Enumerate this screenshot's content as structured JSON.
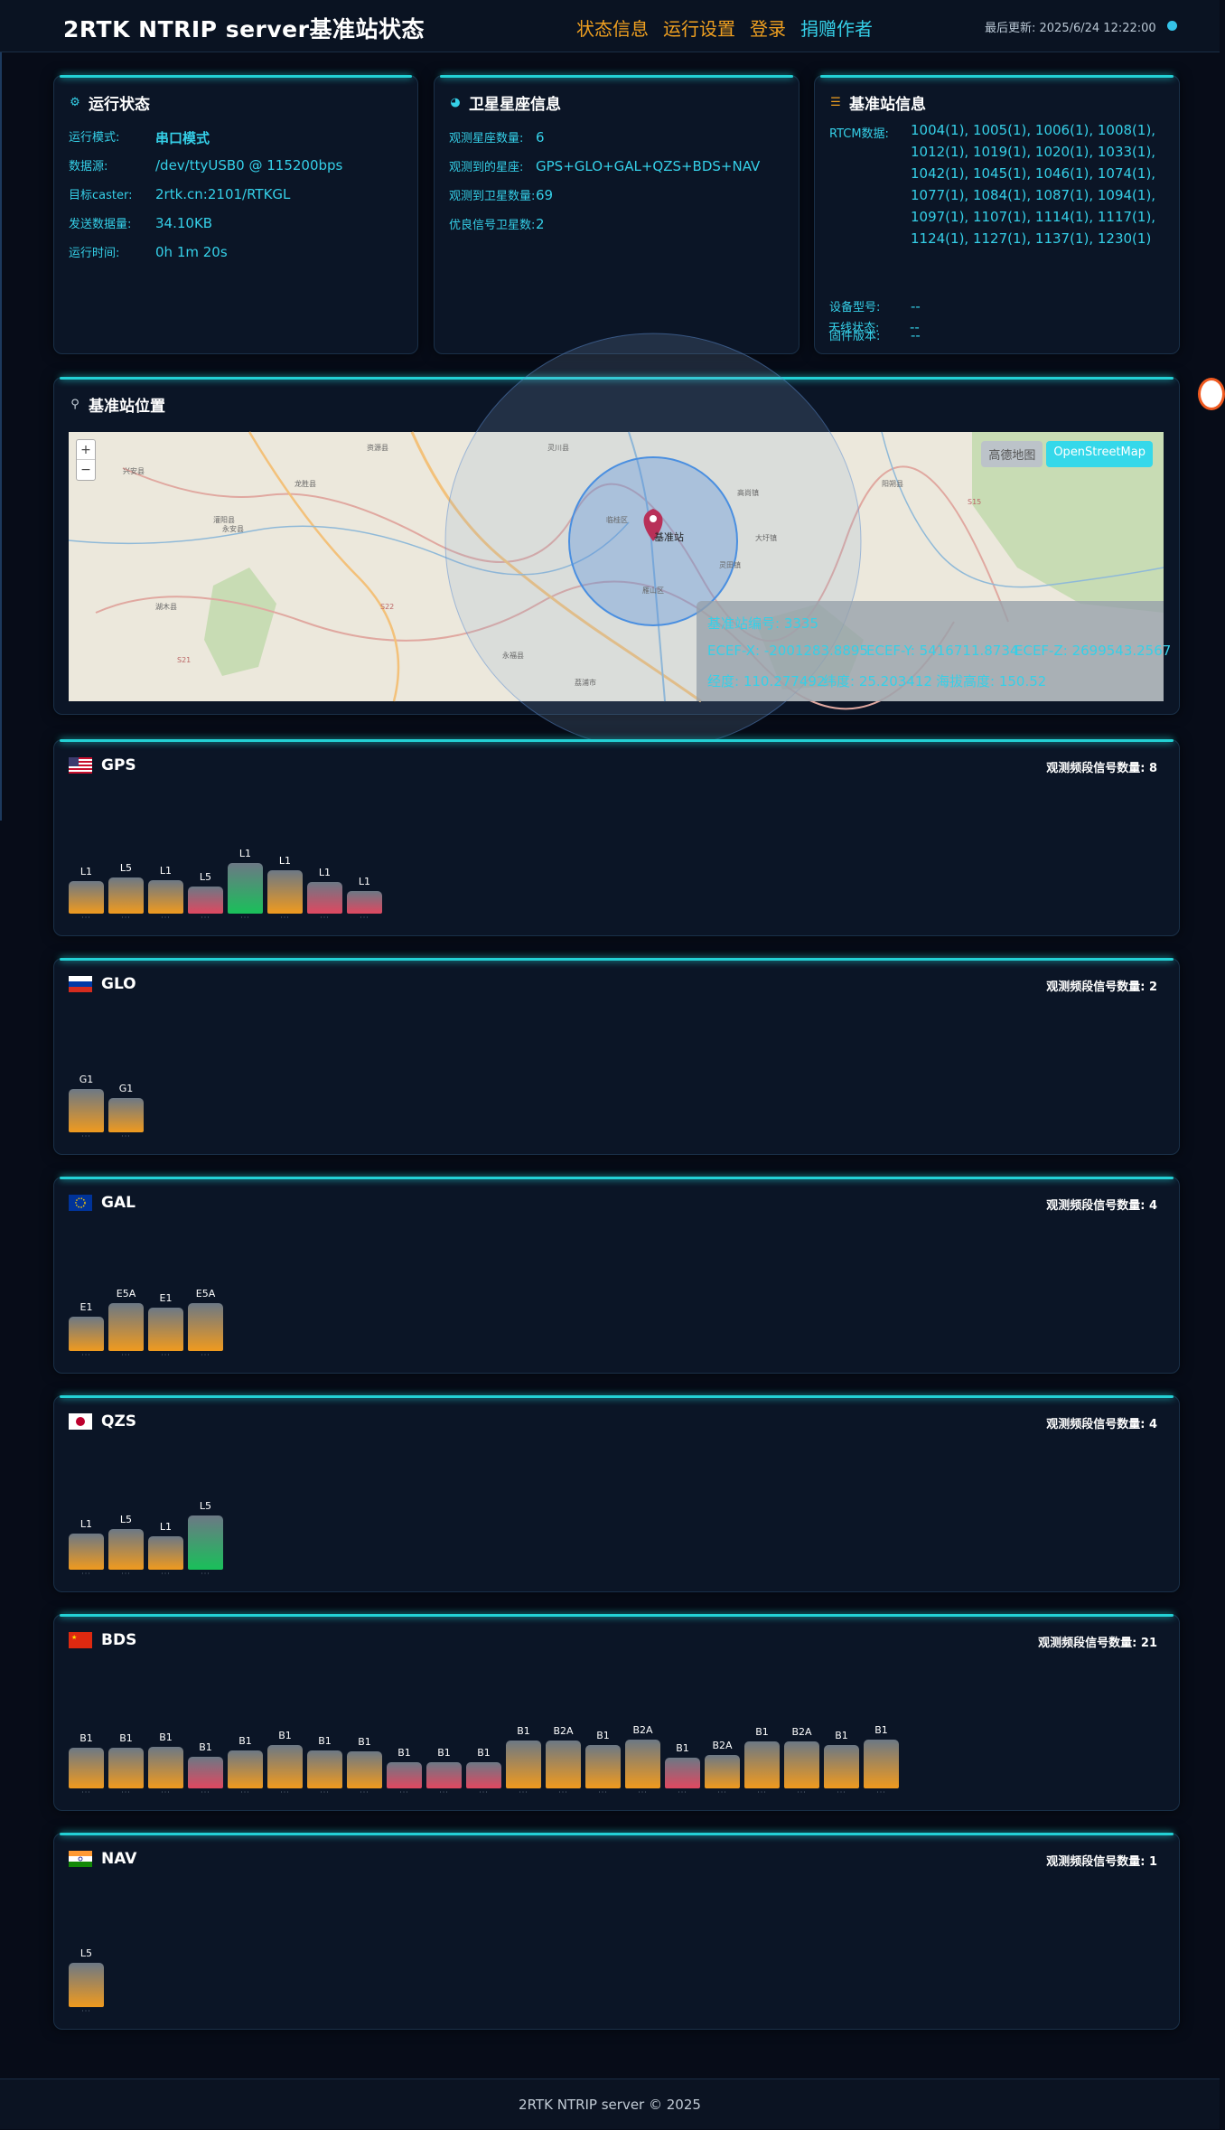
{
  "header": {
    "brand": "2RTK NTRIP server基准站状态",
    "nav": [
      "状态信息",
      "运行设置",
      "登录",
      "捐赠作者"
    ],
    "last_update": "最后更新: 2025/6/24 12:22:00",
    "status_color": "#35c3e8"
  },
  "run_status": {
    "title": "运行状态",
    "icon": "gear-icon",
    "rows": [
      {
        "k": "运行模式:",
        "v": "串口模式"
      },
      {
        "k": "数据源:",
        "v": "/dev/ttyUSB0 @ 115200bps"
      },
      {
        "k": "目标caster:",
        "v": "2rtk.cn:2101/RTKGL"
      },
      {
        "k": "发送数据量:",
        "v": "34.10KB"
      },
      {
        "k": "运行时间:",
        "v": "0h 1m 20s"
      }
    ]
  },
  "constellation": {
    "title": "卫星星座信息",
    "icon": "globe-icon",
    "rows": [
      {
        "k": "观测星座数量:",
        "v": "6"
      },
      {
        "k": "观测到的星座:",
        "v": "GPS+GLO+GAL+QZS+BDS+NAV"
      },
      {
        "k": "观测到卫星数量:",
        "v": "69"
      },
      {
        "k": "优良信号卫星数:",
        "v": "2"
      }
    ]
  },
  "station": {
    "title": "基准站信息",
    "icon": "list-icon",
    "rtcm_label": "RTCM数据:",
    "rtcm_value": "1004(1), 1005(1), 1006(1), 1008(1), 1012(1), 1019(1), 1020(1), 1033(1), 1042(1), 1045(1), 1046(1), 1074(1), 1077(1), 1084(1), 1087(1), 1094(1), 1097(1), 1107(1), 1114(1), 1117(1), 1124(1), 1127(1), 1137(1), 1230(1)",
    "rows": [
      {
        "k": "设备型号:",
        "v": "--"
      },
      {
        "k": "固件版本:",
        "v": "--"
      },
      {
        "k": "天线状态:",
        "v": "--"
      }
    ]
  },
  "position": {
    "title": "基准站位置",
    "icon": "pin-icon",
    "map_buttons": [
      "高德地图",
      "OpenStreetMap"
    ],
    "marker_label": "基准站",
    "station_id": "基准站编号: 3335",
    "ecef_x": "ECEF-X: -2001283.8895",
    "ecef_y": "ECEF-Y: 5416711.8734",
    "ecef_z": "ECEF-Z: 2699543.2567",
    "lon": "经度: 110.277492",
    "lat": "纬度: 25.203412",
    "alt": "海拔高度: 150.52",
    "map_labels": [
      "兴安县",
      "灵川县",
      "临桂区",
      "阳朔县",
      "永福县",
      "恭城县",
      "灌阳县",
      "龙胜县",
      "资源县",
      "荔浦市",
      "湖木县",
      "永安县",
      "高尚镇",
      "大圩镇",
      "灵田镇",
      "雁山区",
      "S22",
      "S21",
      "S15"
    ]
  },
  "count_label": "观测频段信号数量:",
  "gnss": [
    {
      "name": "GPS",
      "flag": "us-flag-icon",
      "count": "8",
      "bars": [
        {
          "l": "L1",
          "h": 36,
          "c": "orange"
        },
        {
          "l": "L5",
          "h": 40,
          "c": "orange"
        },
        {
          "l": "L1",
          "h": 37,
          "c": "orange"
        },
        {
          "l": "L5",
          "h": 30,
          "c": "red"
        },
        {
          "l": "L1",
          "h": 56,
          "c": "green"
        },
        {
          "l": "L1",
          "h": 48,
          "c": "orange"
        },
        {
          "l": "L1",
          "h": 35,
          "c": "red"
        },
        {
          "l": "L1",
          "h": 25,
          "c": "red"
        }
      ]
    },
    {
      "name": "GLO",
      "flag": "ru-flag-icon",
      "count": "2",
      "bars": [
        {
          "l": "G1",
          "h": 48,
          "c": "orange"
        },
        {
          "l": "G1",
          "h": 38,
          "c": "orange"
        }
      ]
    },
    {
      "name": "GAL",
      "flag": "eu-flag-icon",
      "count": "4",
      "bars": [
        {
          "l": "E1",
          "h": 38,
          "c": "orange"
        },
        {
          "l": "E5A",
          "h": 53,
          "c": "orange"
        },
        {
          "l": "E1",
          "h": 48,
          "c": "orange"
        },
        {
          "l": "E5A",
          "h": 53,
          "c": "orange"
        }
      ]
    },
    {
      "name": "QZS",
      "flag": "jp-flag-icon",
      "count": "4",
      "bars": [
        {
          "l": "L1",
          "h": 40,
          "c": "orange"
        },
        {
          "l": "L5",
          "h": 45,
          "c": "orange"
        },
        {
          "l": "L1",
          "h": 37,
          "c": "orange"
        },
        {
          "l": "L5",
          "h": 60,
          "c": "green"
        }
      ]
    },
    {
      "name": "BDS",
      "flag": "cn-flag-icon",
      "count": "21",
      "bars": [
        {
          "l": "B1",
          "h": 45,
          "c": "orange"
        },
        {
          "l": "B1",
          "h": 45,
          "c": "orange"
        },
        {
          "l": "B1",
          "h": 46,
          "c": "orange"
        },
        {
          "l": "B1",
          "h": 35,
          "c": "red"
        },
        {
          "l": "B1",
          "h": 42,
          "c": "orange"
        },
        {
          "l": "B1",
          "h": 48,
          "c": "orange"
        },
        {
          "l": "B1",
          "h": 42,
          "c": "orange"
        },
        {
          "l": "B1",
          "h": 41,
          "c": "orange"
        },
        {
          "l": "B1",
          "h": 29,
          "c": "red"
        },
        {
          "l": "B1",
          "h": 29,
          "c": "red"
        },
        {
          "l": "B1",
          "h": 29,
          "c": "red"
        },
        {
          "l": "B1",
          "h": 53,
          "c": "orange"
        },
        {
          "l": "B2A",
          "h": 53,
          "c": "orange"
        },
        {
          "l": "B1",
          "h": 48,
          "c": "orange"
        },
        {
          "l": "B2A",
          "h": 54,
          "c": "orange"
        },
        {
          "l": "B1",
          "h": 34,
          "c": "red"
        },
        {
          "l": "B2A",
          "h": 37,
          "c": "orange"
        },
        {
          "l": "B1",
          "h": 52,
          "c": "orange"
        },
        {
          "l": "B2A",
          "h": 52,
          "c": "orange"
        },
        {
          "l": "B1",
          "h": 48,
          "c": "orange"
        },
        {
          "l": "B1",
          "h": 54,
          "c": "orange"
        }
      ]
    },
    {
      "name": "NAV",
      "flag": "in-flag-icon",
      "count": "1",
      "bars": [
        {
          "l": "L5",
          "h": 49,
          "c": "orange"
        }
      ]
    }
  ],
  "footer": "2RTK NTRIP server © 2025"
}
